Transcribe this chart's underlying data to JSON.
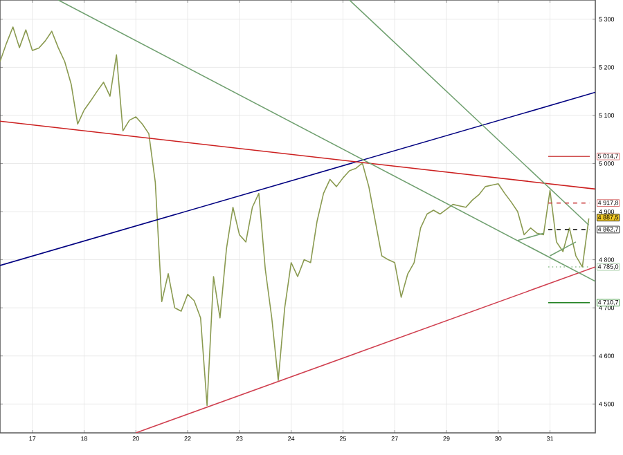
{
  "chart_data": {
    "type": "line",
    "categories": [
      null,
      null,
      null,
      null,
      null,
      "17",
      null,
      null,
      null,
      null,
      null,
      null,
      null,
      "18",
      null,
      null,
      null,
      null,
      null,
      null,
      null,
      "20",
      null,
      null,
      null,
      null,
      null,
      null,
      null,
      "22",
      null,
      null,
      null,
      null,
      null,
      null,
      null,
      "23",
      null,
      null,
      null,
      null,
      null,
      null,
      null,
      "24",
      null,
      null,
      null,
      null,
      null,
      null,
      null,
      "25",
      null,
      null,
      null,
      null,
      null,
      null,
      null,
      "27",
      null,
      null,
      null,
      null,
      null,
      null,
      null,
      "29",
      null,
      null,
      null,
      null,
      null,
      null,
      null,
      "30",
      null,
      null,
      null,
      null,
      null,
      null,
      null,
      "31",
      null,
      null,
      null,
      null,
      null,
      null,
      null
    ],
    "ylim": [
      4440,
      5340
    ],
    "yticks": [
      {
        "value": 4500,
        "label": "4 500"
      },
      {
        "value": 4600,
        "label": "4 600"
      },
      {
        "value": 4700,
        "label": "4 700"
      },
      {
        "value": 4800,
        "label": "4 800"
      },
      {
        "value": 4900,
        "label": "4 900"
      },
      {
        "value": 5000,
        "label": "5 000"
      },
      {
        "value": 5100,
        "label": "5 100"
      },
      {
        "value": 5200,
        "label": "5 200"
      },
      {
        "value": 5300,
        "label": "5 300"
      }
    ],
    "grid": true,
    "marker": "none",
    "series": [
      {
        "color": "#8a9a50",
        "values": [
          5212,
          5250,
          5284,
          5241,
          5278,
          5235,
          5240,
          5255,
          5275,
          5241,
          5212,
          5165,
          5082,
          5111,
          5130,
          5150,
          5169,
          5140,
          5226,
          5068,
          5090,
          5097,
          5082,
          5062,
          4961,
          4713,
          4771,
          4700,
          4693,
          4728,
          4715,
          4679,
          4497,
          4765,
          4679,
          4823,
          4909,
          4852,
          4837,
          4909,
          4938,
          4780,
          4679,
          4549,
          4700,
          4794,
          4765,
          4800,
          4794,
          4880,
          4938,
          4967,
          4952,
          4970,
          4985,
          4990,
          5001,
          4952,
          4880,
          4808,
          4800,
          4794,
          4722,
          4770,
          4794,
          4866,
          4895,
          4903,
          4895,
          4905,
          4915,
          4912,
          4909,
          4924,
          4935,
          4952,
          4955,
          4958,
          4938,
          4920,
          4900,
          4852,
          4866,
          4855,
          4852,
          4944,
          4837,
          4817,
          4866,
          4808,
          4785,
          4886,
          null
        ]
      },
      {
        "color": "#000080",
        "values": [
          4788,
          null,
          null,
          null,
          null,
          null,
          null,
          null,
          null,
          null,
          null,
          null,
          null,
          null,
          null,
          null,
          null,
          null,
          null,
          null,
          null,
          null,
          null,
          null,
          null,
          null,
          null,
          null,
          null,
          null,
          null,
          null,
          null,
          null,
          null,
          null,
          null,
          null,
          null,
          null,
          null,
          null,
          null,
          null,
          null,
          null,
          null,
          null,
          null,
          null,
          null,
          null,
          null,
          null,
          null,
          null,
          null,
          null,
          null,
          null,
          null,
          null,
          null,
          null,
          null,
          null,
          null,
          null,
          null,
          null,
          null,
          null,
          null,
          null,
          null,
          null,
          null,
          null,
          null,
          null,
          null,
          null,
          null,
          null,
          null,
          null,
          null,
          null,
          null,
          null,
          null,
          null,
          5148
        ]
      },
      {
        "color": "#cc2020",
        "values": [
          5088,
          null,
          null,
          null,
          null,
          null,
          null,
          null,
          null,
          null,
          null,
          null,
          null,
          null,
          null,
          null,
          null,
          null,
          null,
          null,
          null,
          null,
          null,
          null,
          null,
          null,
          null,
          null,
          null,
          null,
          null,
          null,
          null,
          null,
          null,
          null,
          null,
          null,
          null,
          null,
          null,
          null,
          null,
          null,
          null,
          null,
          null,
          null,
          null,
          null,
          null,
          null,
          null,
          null,
          null,
          null,
          null,
          null,
          null,
          null,
          null,
          null,
          null,
          null,
          null,
          null,
          null,
          null,
          null,
          null,
          null,
          null,
          null,
          null,
          null,
          null,
          null,
          null,
          null,
          null,
          null,
          null,
          null,
          null,
          null,
          null,
          null,
          null,
          null,
          null,
          null,
          null,
          4947
        ]
      },
      {
        "color": "#d04050",
        "values": [
          null,
          null,
          null,
          null,
          null,
          null,
          null,
          null,
          null,
          null,
          null,
          null,
          null,
          null,
          null,
          null,
          null,
          null,
          null,
          null,
          null,
          4440,
          null,
          null,
          null,
          null,
          null,
          null,
          null,
          null,
          null,
          null,
          null,
          null,
          null,
          null,
          null,
          null,
          null,
          null,
          null,
          null,
          null,
          null,
          null,
          null,
          null,
          null,
          null,
          null,
          null,
          null,
          null,
          null,
          null,
          null,
          null,
          null,
          null,
          null,
          null,
          null,
          null,
          null,
          null,
          null,
          null,
          null,
          null,
          null,
          null,
          null,
          null,
          null,
          null,
          null,
          null,
          null,
          null,
          null,
          null,
          null,
          null,
          null,
          null,
          null,
          null,
          null,
          null,
          null,
          null,
          null,
          4785
        ]
      },
      {
        "color": "#70a070",
        "values": [
          null,
          null,
          null,
          null,
          null,
          null,
          null,
          null,
          null,
          5340,
          null,
          null,
          null,
          null,
          null,
          null,
          null,
          null,
          null,
          null,
          null,
          null,
          null,
          null,
          null,
          null,
          null,
          null,
          null,
          null,
          null,
          null,
          null,
          null,
          null,
          null,
          null,
          null,
          null,
          null,
          null,
          null,
          null,
          null,
          null,
          null,
          null,
          null,
          null,
          null,
          null,
          null,
          null,
          null,
          null,
          null,
          null,
          null,
          null,
          null,
          null,
          null,
          null,
          null,
          null,
          null,
          null,
          null,
          null,
          null,
          null,
          null,
          null,
          null,
          null,
          null,
          null,
          null,
          null,
          null,
          null,
          null,
          null,
          null,
          null,
          null,
          null,
          null,
          null,
          null,
          null,
          null,
          4755
        ]
      },
      {
        "color": "#70a070",
        "values": [
          null,
          null,
          null,
          null,
          null,
          null,
          null,
          null,
          null,
          null,
          null,
          null,
          null,
          null,
          null,
          null,
          null,
          null,
          null,
          null,
          null,
          null,
          null,
          null,
          null,
          null,
          null,
          null,
          null,
          null,
          null,
          null,
          null,
          null,
          null,
          null,
          null,
          null,
          null,
          null,
          null,
          null,
          null,
          null,
          null,
          null,
          null,
          null,
          null,
          null,
          null,
          null,
          null,
          null,
          5340,
          null,
          null,
          null,
          null,
          null,
          null,
          null,
          null,
          null,
          null,
          null,
          null,
          null,
          null,
          null,
          null,
          null,
          null,
          null,
          null,
          null,
          null,
          null,
          null,
          null,
          null,
          null,
          null,
          null,
          null,
          null,
          null,
          null,
          null,
          null,
          null,
          4872,
          null
        ]
      },
      {
        "color": "#70a070",
        "values": [
          null,
          null,
          null,
          null,
          null,
          null,
          null,
          null,
          null,
          null,
          null,
          null,
          null,
          null,
          null,
          null,
          null,
          null,
          null,
          null,
          null,
          null,
          null,
          null,
          null,
          null,
          null,
          null,
          null,
          null,
          null,
          null,
          null,
          null,
          null,
          null,
          null,
          null,
          null,
          null,
          null,
          null,
          null,
          null,
          null,
          null,
          null,
          null,
          null,
          null,
          null,
          null,
          null,
          null,
          null,
          null,
          null,
          null,
          null,
          null,
          null,
          null,
          null,
          null,
          null,
          null,
          null,
          null,
          null,
          null,
          null,
          null,
          null,
          null,
          null,
          null,
          null,
          null,
          null,
          null,
          4840,
          null,
          null,
          null,
          4855,
          null,
          null,
          null,
          null,
          null,
          null,
          null,
          null
        ]
      },
      {
        "color": "#70a070",
        "values": [
          null,
          null,
          null,
          null,
          null,
          null,
          null,
          null,
          null,
          null,
          null,
          null,
          null,
          null,
          null,
          null,
          null,
          null,
          null,
          null,
          null,
          null,
          null,
          null,
          null,
          null,
          null,
          null,
          null,
          null,
          null,
          null,
          null,
          null,
          null,
          null,
          null,
          null,
          null,
          null,
          null,
          null,
          null,
          null,
          null,
          null,
          null,
          null,
          null,
          null,
          null,
          null,
          null,
          null,
          null,
          null,
          null,
          null,
          null,
          null,
          null,
          null,
          null,
          null,
          null,
          null,
          null,
          null,
          null,
          null,
          null,
          null,
          null,
          null,
          null,
          null,
          null,
          null,
          null,
          null,
          null,
          null,
          null,
          null,
          null,
          4808,
          null,
          null,
          null,
          4837,
          null,
          null,
          null
        ]
      }
    ],
    "ref_lines": [
      {
        "axis": "y",
        "value": 5014.7,
        "label": "5 014,7",
        "color": "#d05050",
        "line_style": "solid"
      },
      {
        "axis": "y",
        "value": 4917.8,
        "label": "4 917,8",
        "color": "#d05050",
        "line_style": "dashed"
      },
      {
        "axis": "y",
        "value": 4862.7,
        "label": "4 862,7",
        "color": "#000000",
        "line_style": "dashed"
      },
      {
        "axis": "y",
        "value": 4785.0,
        "label": "4 785,0",
        "color": "#90c090",
        "line_style": "dotted"
      },
      {
        "axis": "y",
        "value": 4710.7,
        "label": "4 710,7",
        "color": "#208020",
        "line_style": "solid"
      }
    ],
    "annotations": [
      {
        "text": "4 887,5",
        "y": 4887.5
      }
    ]
  }
}
